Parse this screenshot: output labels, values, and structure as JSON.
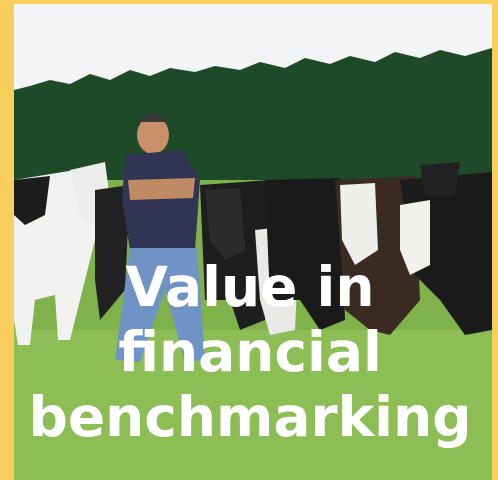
{
  "caption": {
    "lines": [
      "Value in",
      "financial",
      "benchmarking"
    ]
  }
}
